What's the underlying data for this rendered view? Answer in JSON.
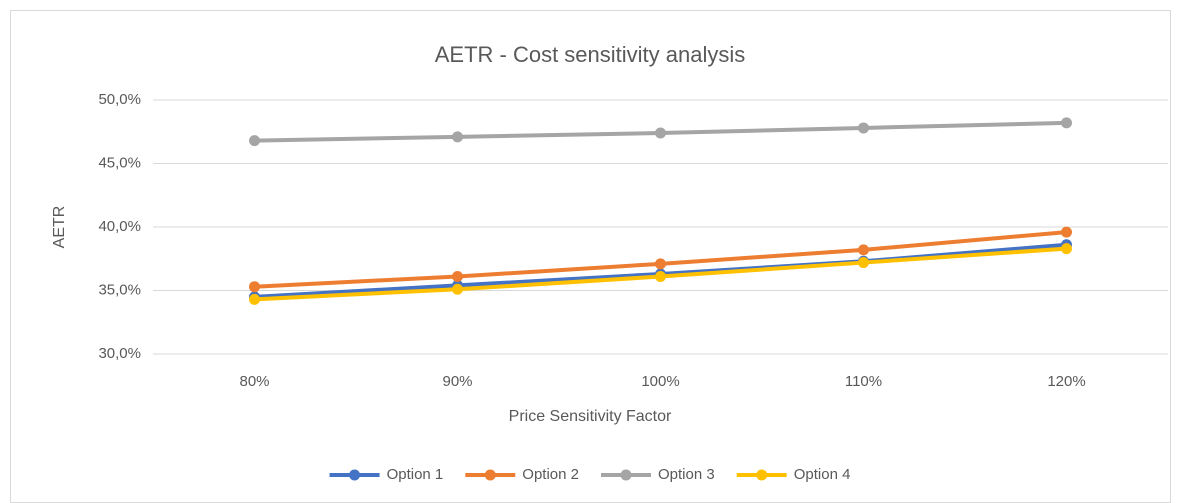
{
  "chart_data": {
    "type": "line",
    "title": "AETR - Cost sensitivity analysis",
    "x_label": "Price Sensitivity Factor",
    "y_label": "AETR",
    "categories": [
      "80%",
      "90%",
      "100%",
      "110%",
      "120%"
    ],
    "series": [
      {
        "name": "Option 1",
        "color": "#4472c4",
        "values": [
          34.5,
          35.4,
          36.3,
          37.3,
          38.6
        ]
      },
      {
        "name": "Option 2",
        "color": "#ed7d31",
        "values": [
          35.3,
          36.1,
          37.1,
          38.2,
          39.6
        ]
      },
      {
        "name": "Option 3",
        "color": "#a5a5a5",
        "values": [
          46.8,
          47.1,
          47.4,
          47.8,
          48.2
        ]
      },
      {
        "name": "Option 4",
        "color": "#ffc000",
        "values": [
          34.3,
          35.1,
          36.1,
          37.2,
          38.3
        ]
      }
    ],
    "ylim": [
      30,
      50
    ],
    "yticks": [
      {
        "value": 30,
        "label": "30,0%"
      },
      {
        "value": 35,
        "label": "35,0%"
      },
      {
        "value": 40,
        "label": "40,0%"
      },
      {
        "value": 45,
        "label": "45,0%"
      },
      {
        "value": 50,
        "label": "50,0%"
      }
    ],
    "grid": true,
    "legend": "bottom"
  }
}
